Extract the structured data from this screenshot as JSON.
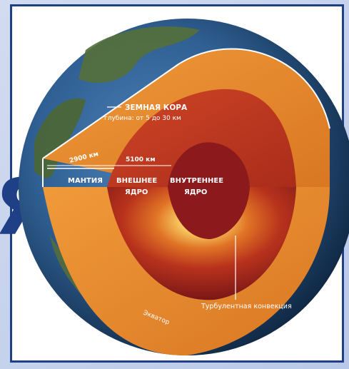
{
  "background_letter": "Я",
  "labels": {
    "crust_title": "ЗЕМНАЯ КОРА",
    "crust_depth": "глубина: от 5 до 30 км",
    "depth_mantle": "2900 км",
    "depth_core": "5100 км",
    "mantle": "МАНТИЯ",
    "outer_core_1": "ВНЕШНЕЕ",
    "outer_core_2": "ЯДРО",
    "inner_core_1": "ВНУТРЕННЕЕ",
    "inner_core_2": "ЯДРО",
    "convection": "Турбулентная конвекция",
    "equator": "Экватор"
  },
  "colors": {
    "frame": "#1f3f86",
    "mantle": "#e8892e",
    "outer_core": "#c23a1e",
    "inner_core": "#8c1a1c",
    "ocean": "#3d6fa5",
    "land": "#4f6a34"
  }
}
